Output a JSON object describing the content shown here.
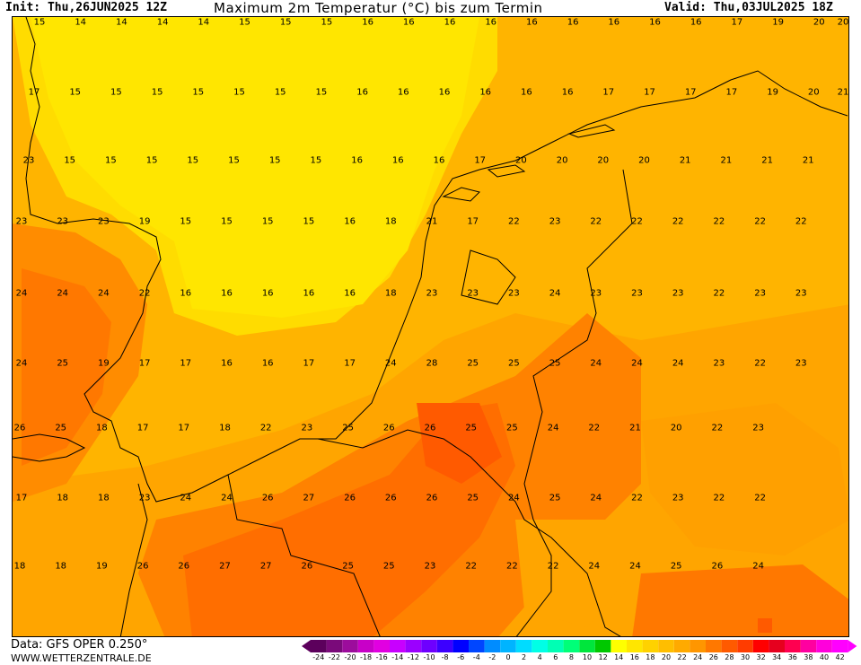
{
  "header": {
    "init": "Init: Thu,26JUN2025 12Z",
    "title": "Maximum 2m Temperatur (°C) bis zum Termin",
    "valid": "Valid: Thu,03JUL2025 18Z"
  },
  "footer": {
    "data_source": "Data: GFS OPER 0.250°",
    "website": "WWW.WETTERZENTRALE.DE"
  },
  "colorbar": {
    "labels": [
      "-24",
      "-22",
      "-20",
      "-18",
      "-16",
      "-14",
      "-12",
      "-10",
      "-8",
      "-6",
      "-4",
      "-2",
      "0",
      "2",
      "4",
      "6",
      "8",
      "10",
      "12",
      "14",
      "16",
      "18",
      "20",
      "22",
      "24",
      "26",
      "28",
      "30",
      "32",
      "34",
      "36",
      "38",
      "40",
      "42"
    ],
    "colors": [
      "#5c005c",
      "#7a0a7a",
      "#9c0c9c",
      "#c800c8",
      "#e100e1",
      "#c800ff",
      "#9b00ff",
      "#6e00ff",
      "#3c00ff",
      "#0000ff",
      "#0046ff",
      "#008cff",
      "#00b4ff",
      "#00dcff",
      "#00ffe6",
      "#00ffb4",
      "#00ff78",
      "#00e63c",
      "#00c800",
      "#ffff00",
      "#ffe600",
      "#ffd200",
      "#ffbe00",
      "#ffaa00",
      "#ff9600",
      "#ff7800",
      "#ff5a00",
      "#ff3c00",
      "#ff0000",
      "#e6001e",
      "#ff0050",
      "#ff00a0",
      "#ff00dc",
      "#ff00ff"
    ]
  },
  "map": {
    "grid_values": [
      [
        "15",
        "14",
        "14",
        "14",
        "14",
        "15",
        "15",
        "15",
        "16",
        "16",
        "16",
        "16",
        "16",
        "16",
        "16",
        "16",
        "16",
        "17",
        "19",
        "20",
        "20"
      ],
      [
        "17",
        "15",
        "15",
        "15",
        "15",
        "15",
        "15",
        "15",
        "16",
        "16",
        "16",
        "16",
        "16",
        "16",
        "17",
        "17",
        "17",
        "17",
        "19",
        "20",
        "21"
      ],
      [
        "23",
        "15",
        "15",
        "15",
        "15",
        "15",
        "15",
        "15",
        "16",
        "16",
        "16",
        "17",
        "20",
        "20",
        "20",
        "20",
        "21",
        "21",
        "21",
        "21"
      ],
      [
        "23",
        "23",
        "23",
        "19",
        "15",
        "15",
        "15",
        "15",
        "16",
        "18",
        "21",
        "17",
        "22",
        "23",
        "22",
        "22",
        "22",
        "22",
        "22",
        "22"
      ],
      [
        "24",
        "24",
        "24",
        "22",
        "16",
        "16",
        "16",
        "16",
        "16",
        "18",
        "23",
        "23",
        "23",
        "24",
        "23",
        "23",
        "23",
        "22",
        "23",
        "23"
      ],
      [
        "24",
        "25",
        "19",
        "17",
        "17",
        "16",
        "16",
        "17",
        "17",
        "24",
        "28",
        "25",
        "25",
        "25",
        "24",
        "24",
        "24",
        "23",
        "22",
        "23"
      ],
      [
        "26",
        "25",
        "18",
        "17",
        "17",
        "18",
        "22",
        "23",
        "25",
        "26",
        "26",
        "25",
        "25",
        "24",
        "22",
        "21",
        "20",
        "22",
        "23"
      ],
      [
        "17",
        "18",
        "18",
        "23",
        "24",
        "24",
        "26",
        "27",
        "26",
        "26",
        "26",
        "25",
        "24",
        "25",
        "24",
        "22",
        "23",
        "22",
        "22"
      ],
      [
        "18",
        "18",
        "19",
        "26",
        "26",
        "27",
        "27",
        "26",
        "25",
        "25",
        "23",
        "22",
        "22",
        "22",
        "24",
        "24",
        "25",
        "26",
        "24"
      ]
    ]
  }
}
